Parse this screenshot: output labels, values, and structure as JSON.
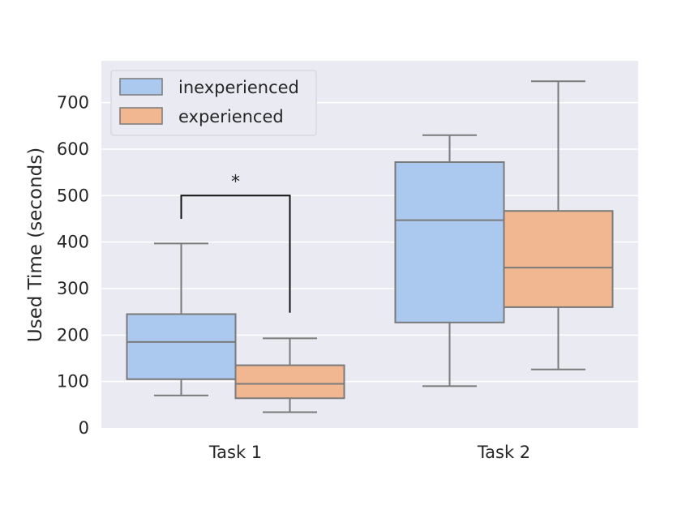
{
  "chart_data": {
    "type": "box",
    "title": "",
    "xlabel": "",
    "ylabel": "Used Time (seconds)",
    "ylim": [
      0,
      790
    ],
    "yticks": [
      0,
      100,
      200,
      300,
      400,
      500,
      600,
      700
    ],
    "grid": true,
    "legend_position": "top-left",
    "categories": [
      "Task 1",
      "Task 2"
    ],
    "series": [
      {
        "name": "inexperienced",
        "color": "#abc9ee",
        "boxes": [
          {
            "category": "Task 1",
            "whisker_low": 70,
            "q1": 105,
            "median": 185,
            "q3": 245,
            "whisker_high": 397
          },
          {
            "category": "Task 2",
            "whisker_low": 90,
            "q1": 227,
            "median": 447,
            "q3": 572,
            "whisker_high": 630
          }
        ]
      },
      {
        "name": "experienced",
        "color": "#f1b791",
        "boxes": [
          {
            "category": "Task 1",
            "whisker_low": 34,
            "q1": 64,
            "median": 95,
            "q3": 135,
            "whisker_high": 193
          },
          {
            "category": "Task 2",
            "whisker_low": 126,
            "q1": 260,
            "median": 345,
            "q3": 467,
            "whisker_high": 746
          }
        ]
      }
    ],
    "annotations": [
      {
        "category": "Task 1",
        "label": "*",
        "y_top": 500,
        "left_end": 450,
        "right_end": 248
      }
    ]
  }
}
